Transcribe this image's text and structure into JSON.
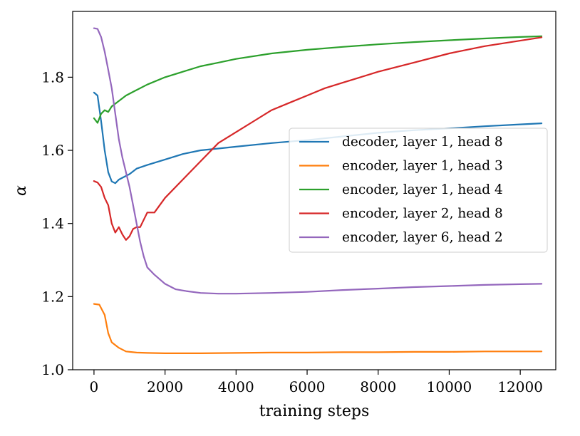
{
  "chart_data": {
    "type": "line",
    "xlabel": "training steps",
    "ylabel": "α",
    "xlim": [
      -600,
      13000
    ],
    "ylim": [
      1.0,
      1.98
    ],
    "x_ticks": [
      0,
      2000,
      4000,
      6000,
      8000,
      10000,
      12000
    ],
    "y_ticks": [
      1.0,
      1.2,
      1.4,
      1.6,
      1.8
    ],
    "y_tick_labels": [
      "1.0",
      "1.2",
      "1.4",
      "1.6",
      "1.8"
    ],
    "legend_position": "center-right",
    "series": [
      {
        "name": "decoder, layer 1, head 8",
        "color": "#1f77b4",
        "points": [
          [
            0,
            1.758
          ],
          [
            100,
            1.75
          ],
          [
            200,
            1.68
          ],
          [
            300,
            1.6
          ],
          [
            400,
            1.54
          ],
          [
            500,
            1.515
          ],
          [
            600,
            1.51
          ],
          [
            700,
            1.52
          ],
          [
            800,
            1.525
          ],
          [
            1000,
            1.535
          ],
          [
            1200,
            1.55
          ],
          [
            1500,
            1.56
          ],
          [
            2000,
            1.575
          ],
          [
            2500,
            1.59
          ],
          [
            3000,
            1.6
          ],
          [
            3500,
            1.605
          ],
          [
            4000,
            1.61
          ],
          [
            5000,
            1.62
          ],
          [
            6000,
            1.628
          ],
          [
            7000,
            1.638
          ],
          [
            8000,
            1.648
          ],
          [
            9000,
            1.655
          ],
          [
            10000,
            1.66
          ],
          [
            11000,
            1.666
          ],
          [
            12000,
            1.671
          ],
          [
            12600,
            1.674
          ]
        ]
      },
      {
        "name": "encoder, layer 1, head 3",
        "color": "#ff7f0e",
        "points": [
          [
            0,
            1.18
          ],
          [
            150,
            1.178
          ],
          [
            300,
            1.15
          ],
          [
            400,
            1.1
          ],
          [
            500,
            1.075
          ],
          [
            700,
            1.06
          ],
          [
            900,
            1.05
          ],
          [
            1200,
            1.047
          ],
          [
            1500,
            1.046
          ],
          [
            2000,
            1.045
          ],
          [
            3000,
            1.045
          ],
          [
            4000,
            1.046
          ],
          [
            5000,
            1.047
          ],
          [
            6000,
            1.047
          ],
          [
            7000,
            1.048
          ],
          [
            8000,
            1.048
          ],
          [
            9000,
            1.049
          ],
          [
            10000,
            1.049
          ],
          [
            11000,
            1.05
          ],
          [
            12000,
            1.05
          ],
          [
            12600,
            1.05
          ]
        ]
      },
      {
        "name": "encoder, layer 1, head 4",
        "color": "#2ca02c",
        "points": [
          [
            0,
            1.688
          ],
          [
            100,
            1.675
          ],
          [
            200,
            1.7
          ],
          [
            300,
            1.71
          ],
          [
            400,
            1.705
          ],
          [
            500,
            1.72
          ],
          [
            700,
            1.735
          ],
          [
            900,
            1.75
          ],
          [
            1100,
            1.76
          ],
          [
            1500,
            1.78
          ],
          [
            2000,
            1.8
          ],
          [
            2500,
            1.815
          ],
          [
            3000,
            1.83
          ],
          [
            3500,
            1.84
          ],
          [
            4000,
            1.85
          ],
          [
            5000,
            1.865
          ],
          [
            6000,
            1.875
          ],
          [
            7000,
            1.883
          ],
          [
            8000,
            1.89
          ],
          [
            9000,
            1.896
          ],
          [
            10000,
            1.901
          ],
          [
            11000,
            1.906
          ],
          [
            12000,
            1.91
          ],
          [
            12600,
            1.912
          ]
        ]
      },
      {
        "name": "encoder, layer 2, head 8",
        "color": "#d62728",
        "points": [
          [
            0,
            1.516
          ],
          [
            100,
            1.512
          ],
          [
            200,
            1.5
          ],
          [
            300,
            1.47
          ],
          [
            400,
            1.45
          ],
          [
            500,
            1.4
          ],
          [
            600,
            1.375
          ],
          [
            700,
            1.39
          ],
          [
            800,
            1.37
          ],
          [
            900,
            1.355
          ],
          [
            1000,
            1.365
          ],
          [
            1100,
            1.385
          ],
          [
            1200,
            1.39
          ],
          [
            1300,
            1.39
          ],
          [
            1500,
            1.43
          ],
          [
            1700,
            1.43
          ],
          [
            2000,
            1.47
          ],
          [
            2500,
            1.52
          ],
          [
            3000,
            1.57
          ],
          [
            3500,
            1.62
          ],
          [
            4000,
            1.65
          ],
          [
            4500,
            1.68
          ],
          [
            5000,
            1.71
          ],
          [
            5500,
            1.73
          ],
          [
            6000,
            1.75
          ],
          [
            6500,
            1.77
          ],
          [
            7000,
            1.785
          ],
          [
            7500,
            1.8
          ],
          [
            8000,
            1.815
          ],
          [
            9000,
            1.84
          ],
          [
            10000,
            1.865
          ],
          [
            11000,
            1.885
          ],
          [
            12000,
            1.9
          ],
          [
            12600,
            1.909
          ]
        ]
      },
      {
        "name": "encoder, layer 6, head 2",
        "color": "#9467bd",
        "points": [
          [
            0,
            1.934
          ],
          [
            100,
            1.932
          ],
          [
            200,
            1.91
          ],
          [
            300,
            1.87
          ],
          [
            400,
            1.82
          ],
          [
            500,
            1.77
          ],
          [
            600,
            1.7
          ],
          [
            700,
            1.63
          ],
          [
            800,
            1.58
          ],
          [
            900,
            1.54
          ],
          [
            1000,
            1.5
          ],
          [
            1100,
            1.45
          ],
          [
            1200,
            1.4
          ],
          [
            1300,
            1.35
          ],
          [
            1400,
            1.31
          ],
          [
            1500,
            1.28
          ],
          [
            1700,
            1.26
          ],
          [
            2000,
            1.235
          ],
          [
            2300,
            1.22
          ],
          [
            2600,
            1.215
          ],
          [
            3000,
            1.21
          ],
          [
            3500,
            1.208
          ],
          [
            4000,
            1.208
          ],
          [
            5000,
            1.21
          ],
          [
            6000,
            1.213
          ],
          [
            7000,
            1.218
          ],
          [
            8000,
            1.222
          ],
          [
            9000,
            1.226
          ],
          [
            10000,
            1.229
          ],
          [
            11000,
            1.232
          ],
          [
            12000,
            1.234
          ],
          [
            12600,
            1.235
          ]
        ]
      }
    ]
  }
}
